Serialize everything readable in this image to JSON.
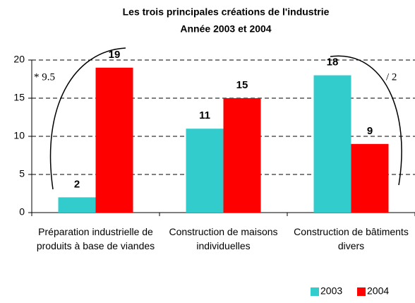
{
  "chart_data": {
    "type": "bar",
    "title": "Les trois principales créations de l'industrie",
    "subtitle": "Année 2003 et 2004",
    "categories": [
      "Préparation industrielle de produits à base de viandes",
      "Construction de maisons individuelles",
      "Construction de bâtiments divers"
    ],
    "series": [
      {
        "name": "2003",
        "color": "#33cccc",
        "values": [
          2,
          11,
          18
        ]
      },
      {
        "name": "2004",
        "color": "#ff0000",
        "values": [
          19,
          15,
          9
        ]
      }
    ],
    "annotations": [
      "* 9.5",
      "/ 2"
    ],
    "ylim": [
      0,
      20
    ],
    "yticks": [
      0,
      5,
      10,
      15,
      20
    ],
    "grid": true,
    "legend": "bottom-right"
  }
}
